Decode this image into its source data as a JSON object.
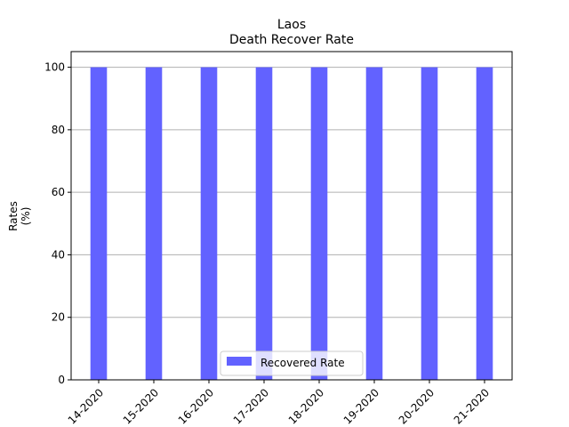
{
  "chart_data": {
    "type": "bar",
    "title": "Laos",
    "subtitle": "Death Recover Rate",
    "ylabel_line1": "Rates",
    "ylabel_line2": "(%)",
    "xlabel": "",
    "categories": [
      "14-2020",
      "15-2020",
      "16-2020",
      "17-2020",
      "18-2020",
      "19-2020",
      "20-2020",
      "21-2020"
    ],
    "series": [
      {
        "name": "Recovered Rate",
        "values": [
          100,
          100,
          100,
          100,
          100,
          100,
          100,
          100
        ],
        "color": "#6262ff"
      }
    ],
    "ylim": [
      0,
      105
    ],
    "yticks": [
      0,
      20,
      40,
      60,
      80,
      100
    ],
    "grid": "y",
    "legend_position": "lower-center"
  }
}
